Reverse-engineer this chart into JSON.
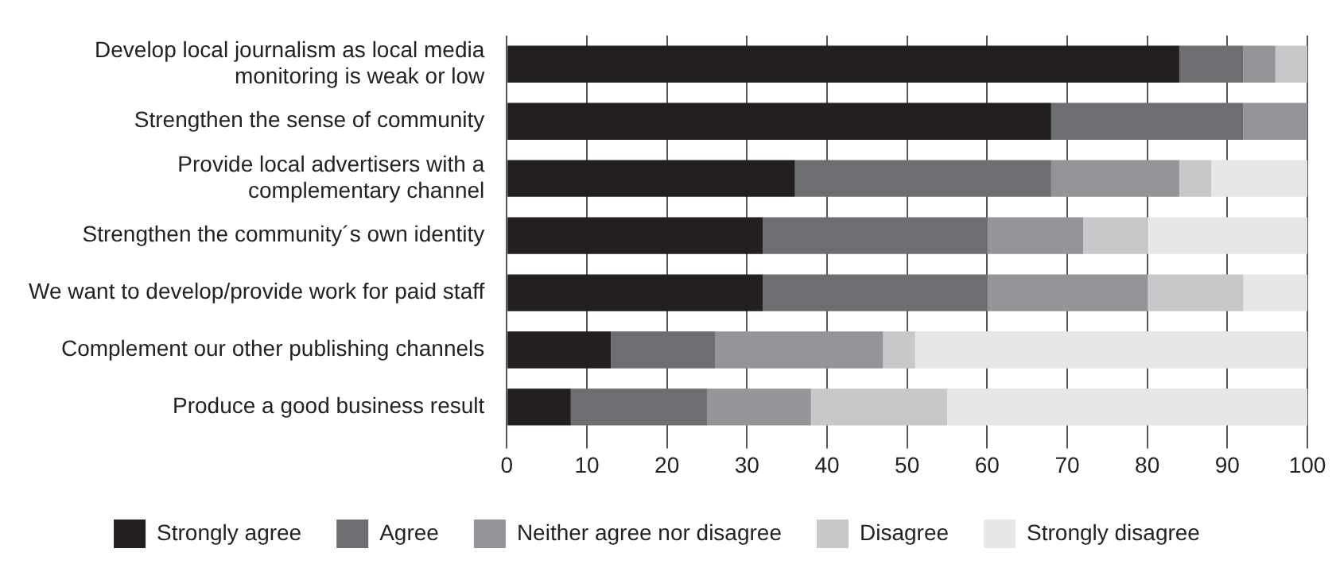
{
  "chart_data": {
    "type": "bar",
    "orientation": "horizontal",
    "stacked": true,
    "categories": [
      "Develop local journalism as local media monitoring is weak or low",
      "Strengthen the sense of community",
      "Provide local advertisers with a complementary channel",
      "Strengthen the community´s own identity",
      "We want to develop/provide work for paid staff",
      "Complement our other publishing channels",
      "Produce a good business result"
    ],
    "series": [
      {
        "name": "Strongly agree",
        "color": "#231f20",
        "values": [
          84,
          68,
          36,
          32,
          32,
          13,
          8
        ]
      },
      {
        "name": "Agree",
        "color": "#6d6e71",
        "values": [
          8,
          24,
          32,
          28,
          28,
          13,
          17
        ]
      },
      {
        "name": "Neither agree nor disagree",
        "color": "#939598",
        "values": [
          4,
          8,
          16,
          12,
          20,
          21,
          13
        ]
      },
      {
        "name": "Disagree",
        "color": "#c7c8ca",
        "values": [
          4,
          0,
          4,
          8,
          12,
          4,
          17
        ]
      },
      {
        "name": "Strongly disagree",
        "color": "#e6e7e8",
        "values": [
          0,
          0,
          12,
          20,
          8,
          49,
          45
        ]
      }
    ],
    "xlim": [
      0,
      100
    ],
    "xticks": [
      0,
      10,
      20,
      30,
      40,
      50,
      60,
      70,
      80,
      90,
      100
    ],
    "grid": "x",
    "legend": "bottom"
  }
}
